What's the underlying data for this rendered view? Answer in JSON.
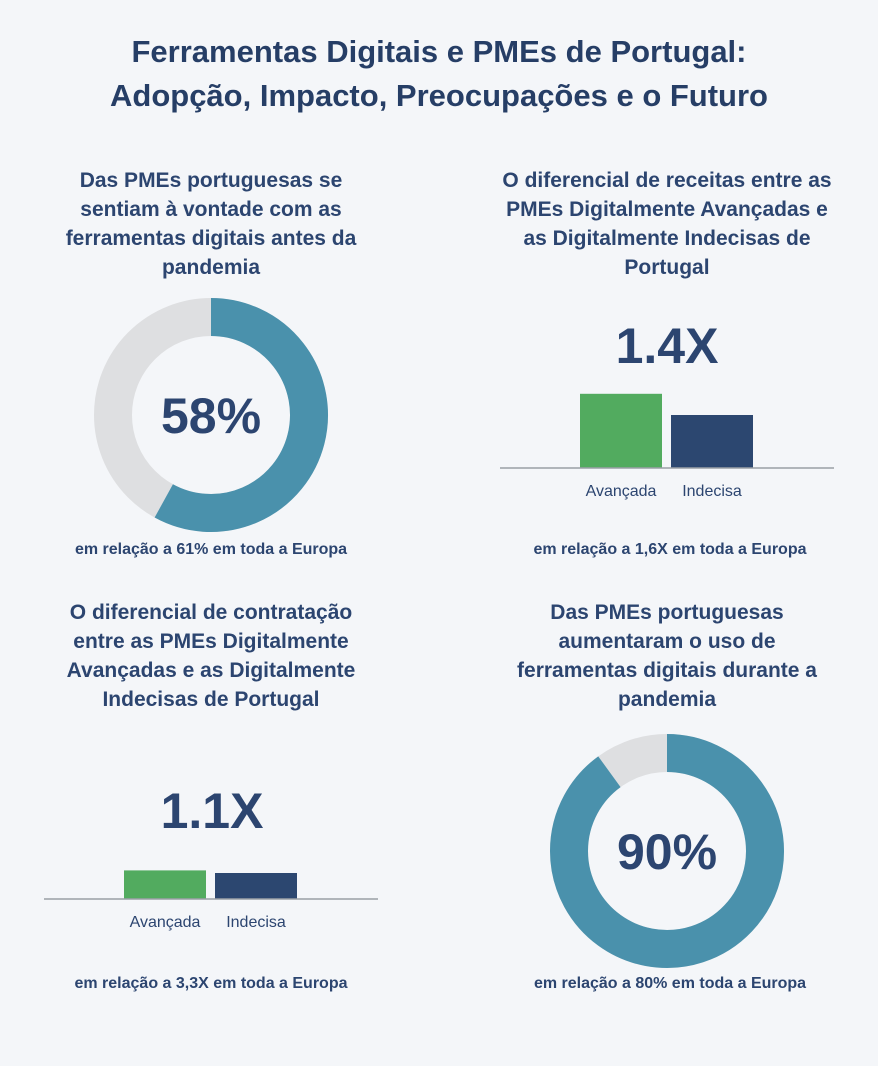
{
  "title_lines": [
    "Ferramentas Digitais e PMEs de Portugal:",
    "Adopção, Impacto, Preocupações e o Futuro"
  ],
  "colors": {
    "donut_fill": "#4a91ac",
    "donut_track": "#dedfe1",
    "avancada": "#52ab5f",
    "indecisa": "#2c4770",
    "text": "#2c4570",
    "baseline": "#9a9fa6"
  },
  "panels": {
    "tl": {
      "title_lines": [
        "Das PMEs portuguesas se",
        "sentiam à vontade com as",
        "ferramentas digitais antes da",
        "pandemia"
      ],
      "value_label": "58%",
      "note": "em relação a 61% em toda a Europa"
    },
    "tr": {
      "title_lines": [
        "O diferencial de receitas entre as",
        "PMEs Digitalmente Avançadas e",
        "as Digitalmente Indecisas de",
        "Portugal"
      ],
      "value_label": "1.4X",
      "note": "em relação a 1,6X em toda a Europa"
    },
    "bl": {
      "title_lines": [
        "O diferencial de contratação",
        "entre as PMEs Digitalmente",
        "Avançadas e as Digitalmente",
        "Indecisas de Portugal"
      ],
      "value_label": "1.1X",
      "note": "em relação a 3,3X em toda a Europa"
    },
    "br": {
      "title_lines": [
        "Das PMEs portuguesas",
        "aumentaram o uso de",
        "ferramentas digitais durante a",
        "pandemia"
      ],
      "value_label": "90%",
      "note": "em relação a 80% em toda a Europa"
    }
  },
  "chart_data": [
    {
      "type": "pie",
      "title": "Das PMEs portuguesas se sentiam à vontade com as ferramentas digitais antes da pandemia",
      "values": [
        58,
        42
      ],
      "labels": [
        "58%",
        ""
      ]
    },
    {
      "type": "bar",
      "title": "O diferencial de receitas entre as PMEs Digitalmente Avançadas e as Digitalmente Indecisas de Portugal",
      "categories": [
        "Avançada",
        "Indecisa"
      ],
      "values": [
        1.4,
        1.0
      ]
    },
    {
      "type": "bar",
      "title": "O diferencial de contratação entre as PMEs Digitalmente Avançadas e as Digitalmente Indecisas de Portugal",
      "categories": [
        "Avançada",
        "Indecisa"
      ],
      "values": [
        1.1,
        1.0
      ]
    },
    {
      "type": "pie",
      "title": "Das PMEs portuguesas aumentaram o uso de ferramentas digitais durante a pandemia",
      "values": [
        90,
        10
      ],
      "labels": [
        "90%",
        ""
      ]
    }
  ]
}
